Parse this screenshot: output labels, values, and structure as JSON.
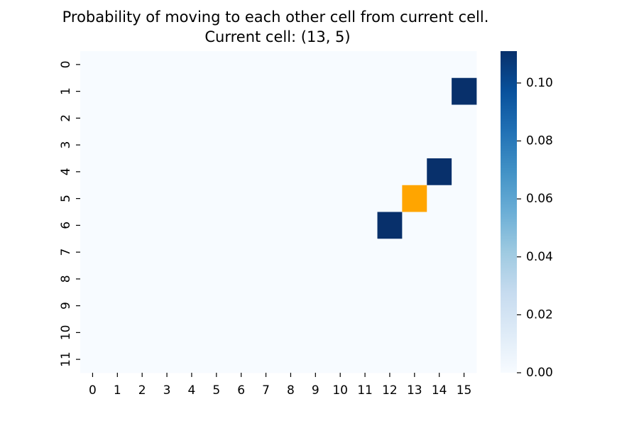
{
  "chart_data": {
    "type": "heatmap",
    "title": "Probability of moving to each other cell from current cell.",
    "subtitle": "Current cell: (13, 5)",
    "xlabel": "",
    "ylabel": "",
    "x_categories": [
      "0",
      "1",
      "2",
      "3",
      "4",
      "5",
      "6",
      "7",
      "8",
      "9",
      "10",
      "11",
      "12",
      "13",
      "14",
      "15"
    ],
    "y_categories": [
      "0",
      "1",
      "2",
      "3",
      "4",
      "5",
      "6",
      "7",
      "8",
      "9",
      "10",
      "11"
    ],
    "default_value": 0.0,
    "cells": [
      {
        "x": 15,
        "y": 1,
        "value": 0.111
      },
      {
        "x": 14,
        "y": 4,
        "value": 0.111
      },
      {
        "x": 12,
        "y": 6,
        "value": 0.111
      }
    ],
    "current_cell": {
      "x": 13,
      "y": 5
    },
    "current_cell_color": "#ffa500",
    "colormap": "Blues",
    "color_range": [
      0.0,
      0.111
    ],
    "colorbar_ticks": [
      "0.00",
      "0.02",
      "0.04",
      "0.06",
      "0.08",
      "0.10"
    ],
    "colorbar_position": "right",
    "grid": false
  }
}
